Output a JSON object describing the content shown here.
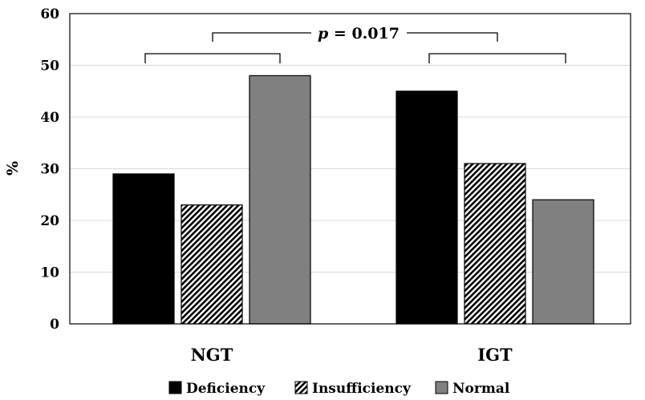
{
  "chart_data": {
    "type": "bar",
    "title": "",
    "xlabel": "",
    "ylabel": "%",
    "ylim": [
      0,
      60
    ],
    "yticks": [
      0,
      10,
      20,
      30,
      40,
      50,
      60
    ],
    "grid": true,
    "legend_position": "bottom",
    "categories": [
      "NGT",
      "IGT"
    ],
    "series": [
      {
        "name": "Deficiency",
        "values": [
          29,
          45
        ],
        "color": "#000000",
        "pattern": "solid"
      },
      {
        "name": "Insufficiency",
        "values": [
          23,
          31
        ],
        "color": "#000000",
        "pattern": "hatched"
      },
      {
        "name": "Normal",
        "values": [
          48,
          24
        ],
        "color": "#808080",
        "pattern": "solid"
      }
    ],
    "annotation": {
      "p_symbol": "p",
      "p_text": " = 0.017"
    }
  }
}
